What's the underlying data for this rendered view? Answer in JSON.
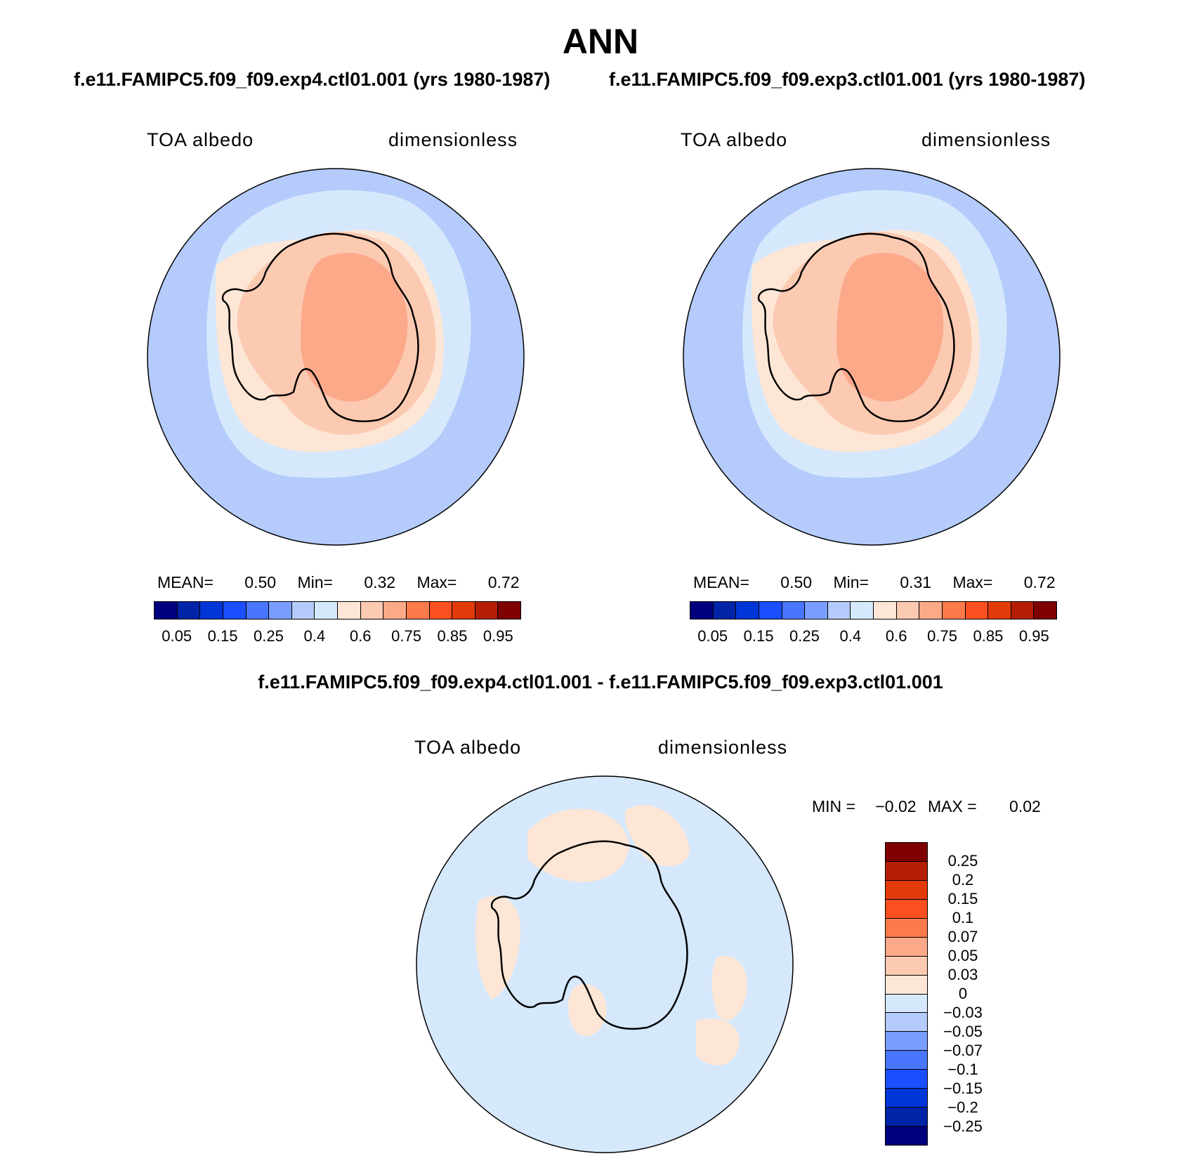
{
  "title": "ANN",
  "panels": [
    {
      "case_title": "f.e11.FAMIPC5.f09_f09.exp4.ctl01.001 (yrs 1980-1987)",
      "field_label": "TOA albedo",
      "units_label": "dimensionless",
      "stats": {
        "mean_label": "MEAN=",
        "mean": "0.50",
        "min_label": "Min=",
        "min": "0.32",
        "max_label": "Max=",
        "max": "0.72"
      }
    },
    {
      "case_title": "f.e11.FAMIPC5.f09_f09.exp3.ctl01.001 (yrs 1980-1987)",
      "field_label": "TOA albedo",
      "units_label": "dimensionless",
      "stats": {
        "mean_label": "MEAN=",
        "mean": "0.50",
        "min_label": "Min=",
        "min": "0.31",
        "max_label": "Max=",
        "max": "0.72"
      }
    }
  ],
  "diff_panel": {
    "title": "f.e11.FAMIPC5.f09_f09.exp4.ctl01.001 - f.e11.FAMIPC5.f09_f09.exp3.ctl01.001",
    "field_label": "TOA albedo",
    "units_label": "dimensionless",
    "stats": {
      "min_label": "MIN =",
      "min": "−0.02",
      "max_label": "MAX =",
      "max": "0.02"
    }
  },
  "abs_colorbar": {
    "colors": [
      "#00007f",
      "#0024a8",
      "#0035d8",
      "#1a4fff",
      "#4876ff",
      "#7a9eff",
      "#b4cbfb",
      "#d6e8fc",
      "#fde6d6",
      "#fcc9b1",
      "#fca98a",
      "#fd7a4a",
      "#fd4f1f",
      "#e23b0a",
      "#b51e05",
      "#7f0000"
    ],
    "labels": [
      "0.05",
      "0.15",
      "0.25",
      "0.4",
      "0.6",
      "0.75",
      "0.85",
      "0.95"
    ]
  },
  "diff_colorbar": {
    "colors": [
      "#7f0000",
      "#b51e05",
      "#e23b0a",
      "#fd4f1f",
      "#fd7a4a",
      "#fca98a",
      "#fcc9b1",
      "#fde6d6",
      "#d6e8fc",
      "#b4cbfb",
      "#7a9eff",
      "#4876ff",
      "#1a4fff",
      "#0035d8",
      "#0024a8",
      "#00007f"
    ],
    "labels": [
      "0.25",
      "0.2",
      "0.15",
      "0.1",
      "0.07",
      "0.05",
      "0.03",
      "0",
      "−0.03",
      "−0.05",
      "−0.07",
      "−0.1",
      "−0.15",
      "−0.2",
      "−0.25"
    ]
  }
}
